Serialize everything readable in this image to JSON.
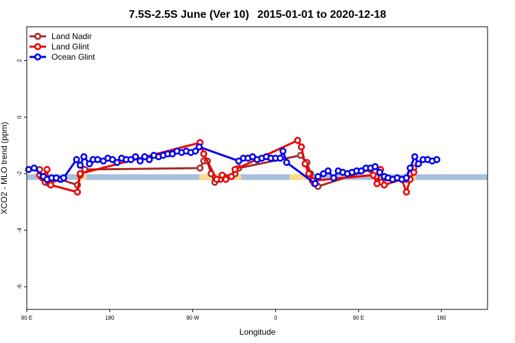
{
  "chart_data": {
    "type": "line",
    "title_main": "7.5S-2.5S June (Ver 10)",
    "title_dates": "2015-01-01 to 2020-12-18",
    "xlabel": "Longitude",
    "ylabel": "XCO2 - MLO trend (ppm)",
    "xlim": [
      90,
      590
    ],
    "ylim": [
      -6.8,
      3.2
    ],
    "x_ticks": [
      {
        "value": 90,
        "label": "90 E"
      },
      {
        "value": 180,
        "label": "180"
      },
      {
        "value": 270,
        "label": "90 W"
      },
      {
        "value": 360,
        "label": "0"
      },
      {
        "value": 450,
        "label": "90 E"
      },
      {
        "value": 540,
        "label": "180"
      }
    ],
    "y_ticks": [
      {
        "value": 2,
        "label": "2"
      },
      {
        "value": 0,
        "label": "0"
      },
      {
        "value": -2,
        "label": "-2"
      },
      {
        "value": -4,
        "label": "-4"
      },
      {
        "value": -6,
        "label": "-6"
      }
    ],
    "surface_band": {
      "y_range": [
        -2.22,
        -2.02
      ],
      "ocean_color": "#a8bfdd",
      "land_color": "#fdd98a",
      "land_segments": [
        [
          145,
          155
        ],
        [
          277,
          323
        ],
        [
          375,
          395
        ],
        [
          502,
          512
        ]
      ]
    },
    "series": [
      {
        "name": "Land Nadir",
        "color": "#a52a2a",
        "points": [
          [
            104,
            -1.85
          ],
          [
            106,
            -2.1
          ],
          [
            110,
            -2.3
          ],
          [
            114,
            -2.35
          ],
          [
            126,
            -2.2
          ],
          [
            145,
            -2.4
          ],
          [
            148,
            -2.05
          ],
          [
            153,
            -1.85
          ],
          [
            278,
            -1.8
          ],
          [
            282,
            -1.55
          ],
          [
            286,
            -1.55
          ],
          [
            290,
            -2.0
          ],
          [
            294,
            -2.3
          ],
          [
            300,
            -2.2
          ],
          [
            304,
            -2.1
          ],
          [
            316,
            -2.0
          ],
          [
            320,
            -1.8
          ],
          [
            387,
            -1.35
          ],
          [
            394,
            -1.6
          ],
          [
            398,
            -2.0
          ],
          [
            402,
            -2.35
          ],
          [
            406,
            -2.45
          ],
          [
            463,
            -1.85
          ],
          [
            469,
            -2.1
          ],
          [
            475,
            -2.3
          ],
          [
            481,
            -2.15
          ],
          [
            502,
            -2.2
          ],
          [
            506,
            -2.0
          ],
          [
            510,
            -1.8
          ]
        ]
      },
      {
        "name": "Land Glint",
        "color": "#ee0000",
        "points": [
          [
            104,
            -2.05
          ],
          [
            107,
            -2.15
          ],
          [
            112,
            -1.85
          ],
          [
            113,
            -2.25
          ],
          [
            116,
            -2.4
          ],
          [
            145,
            -2.65
          ],
          [
            148,
            -2.0
          ],
          [
            278,
            -0.9
          ],
          [
            282,
            -1.3
          ],
          [
            296,
            -2.2
          ],
          [
            302,
            -2.05
          ],
          [
            306,
            -2.2
          ],
          [
            312,
            -2.1
          ],
          [
            316,
            -1.85
          ],
          [
            384,
            -0.82
          ],
          [
            388,
            -1.05
          ],
          [
            392,
            -1.65
          ],
          [
            396,
            -2.0
          ],
          [
            400,
            -2.25
          ],
          [
            466,
            -2.05
          ],
          [
            470,
            -2.35
          ],
          [
            474,
            -1.85
          ],
          [
            478,
            -2.4
          ],
          [
            497,
            -2.2
          ],
          [
            502,
            -2.65
          ],
          [
            506,
            -2.2
          ],
          [
            510,
            -1.95
          ]
        ]
      },
      {
        "name": "Ocean Glint",
        "color": "#0000ee",
        "points": [
          [
            92,
            -1.85
          ],
          [
            98,
            -1.8
          ],
          [
            108,
            -2.1
          ],
          [
            112,
            -2.2
          ],
          [
            117,
            -2.15
          ],
          [
            122,
            -2.15
          ],
          [
            127,
            -2.2
          ],
          [
            130,
            -2.15
          ],
          [
            144,
            -1.5
          ],
          [
            148,
            -1.7
          ],
          [
            152,
            -1.4
          ],
          [
            158,
            -1.65
          ],
          [
            162,
            -1.5
          ],
          [
            167,
            -1.5
          ],
          [
            173,
            -1.55
          ],
          [
            178,
            -1.45
          ],
          [
            183,
            -1.5
          ],
          [
            188,
            -1.6
          ],
          [
            193,
            -1.45
          ],
          [
            198,
            -1.5
          ],
          [
            203,
            -1.5
          ],
          [
            208,
            -1.4
          ],
          [
            213,
            -1.55
          ],
          [
            218,
            -1.4
          ],
          [
            223,
            -1.5
          ],
          [
            228,
            -1.35
          ],
          [
            233,
            -1.4
          ],
          [
            238,
            -1.35
          ],
          [
            243,
            -1.3
          ],
          [
            248,
            -1.3
          ],
          [
            253,
            -1.2
          ],
          [
            258,
            -1.25
          ],
          [
            263,
            -1.2
          ],
          [
            268,
            -1.25
          ],
          [
            273,
            -1.2
          ],
          [
            277,
            -1.05
          ],
          [
            320,
            -1.55
          ],
          [
            325,
            -1.45
          ],
          [
            330,
            -1.45
          ],
          [
            335,
            -1.4
          ],
          [
            340,
            -1.5
          ],
          [
            345,
            -1.45
          ],
          [
            350,
            -1.4
          ],
          [
            355,
            -1.45
          ],
          [
            360,
            -1.45
          ],
          [
            365,
            -1.45
          ],
          [
            368,
            -1.2
          ],
          [
            372,
            -1.6
          ],
          [
            403,
            -2.35
          ],
          [
            406,
            -2.1
          ],
          [
            412,
            -2.0
          ],
          [
            417,
            -1.9
          ],
          [
            423,
            -2.15
          ],
          [
            428,
            -1.9
          ],
          [
            433,
            -1.95
          ],
          [
            438,
            -2.0
          ],
          [
            443,
            -1.95
          ],
          [
            448,
            -1.9
          ],
          [
            453,
            -1.9
          ],
          [
            458,
            -1.8
          ],
          [
            463,
            -1.8
          ],
          [
            468,
            -1.75
          ],
          [
            473,
            -1.95
          ],
          [
            478,
            -2.1
          ],
          [
            482,
            -2.15
          ],
          [
            487,
            -2.2
          ],
          [
            492,
            -2.15
          ],
          [
            497,
            -2.2
          ],
          [
            502,
            -2.15
          ],
          [
            506,
            -1.8
          ],
          [
            511,
            -1.4
          ],
          [
            515,
            -1.65
          ],
          [
            520,
            -1.5
          ],
          [
            525,
            -1.5
          ],
          [
            530,
            -1.55
          ],
          [
            535,
            -1.5
          ]
        ]
      }
    ],
    "legend": {
      "position": "top-left",
      "entries": [
        "Land Nadir",
        "Land Glint",
        "Ocean Glint"
      ]
    }
  }
}
